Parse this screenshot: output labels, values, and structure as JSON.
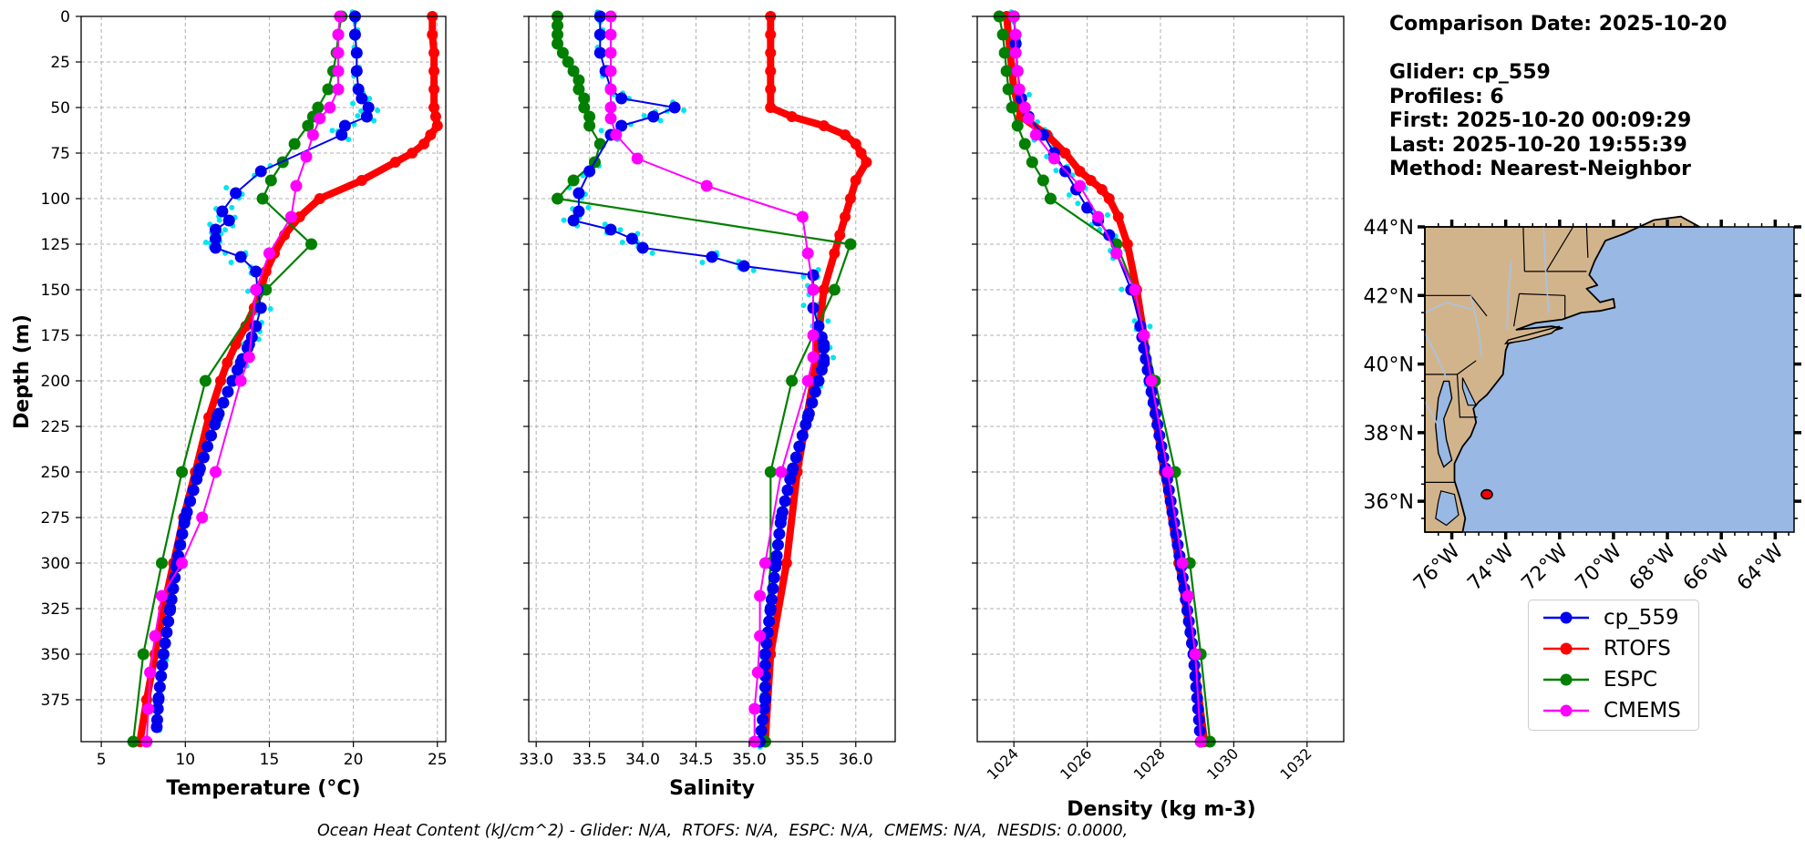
{
  "info": {
    "comparison_date": "Comparison Date: 2025-10-20",
    "glider": "Glider: cp_559",
    "profiles": "Profiles: 6",
    "first": "First: 2025-10-20 00:09:29",
    "last": "Last: 2025-10-20 19:55:39",
    "method": "Method: Nearest-Neighbor"
  },
  "footer": "Ocean Heat Content (kJ/cm^2) - Glider: N/A,  RTOFS: N/A,  ESPC: N/A,  CMEMS: N/A,  NESDIS: 0.0000,",
  "colors": {
    "glider": "#0000ee",
    "raw": "#00e5ee",
    "rtofs": "#ff0000",
    "espc": "#007f00",
    "cmems": "#ff00ff",
    "land": "#d2b48c",
    "ocean": "#99b8e3"
  },
  "legend": [
    {
      "label": "cp_559",
      "color": "#0000ee"
    },
    {
      "label": "RTOFS",
      "color": "#ff0000"
    },
    {
      "label": "ESPC",
      "color": "#007f00"
    },
    {
      "label": "CMEMS",
      "color": "#ff00ff"
    }
  ],
  "chart_data": [
    {
      "type": "line",
      "xlabel": "Temperature (°C)",
      "ylabel": "Depth (m)",
      "xlim": [
        3.8,
        25.5
      ],
      "ylim": [
        398,
        0
      ],
      "xticks": [
        5,
        10,
        15,
        20,
        25
      ],
      "yticks": [
        0,
        25,
        50,
        75,
        100,
        125,
        150,
        175,
        200,
        225,
        250,
        275,
        300,
        325,
        350,
        375
      ],
      "series": [
        {
          "name": "RTOFS",
          "depth": [
            0,
            10,
            20,
            30,
            40,
            50,
            55,
            60,
            65,
            70,
            75,
            80,
            90,
            100,
            110,
            120,
            130,
            140,
            150,
            160,
            170,
            180,
            190,
            200,
            220,
            250,
            275,
            300,
            325,
            350,
            375,
            398
          ],
          "values": [
            24.7,
            24.7,
            24.8,
            24.8,
            24.8,
            24.8,
            24.9,
            25.0,
            24.6,
            24.2,
            23.5,
            22.5,
            20.5,
            18.0,
            16.8,
            15.9,
            15.3,
            14.8,
            14.5,
            14.1,
            13.6,
            13.0,
            12.5,
            12.1,
            11.4,
            10.6,
            9.9,
            9.3,
            8.7,
            8.2,
            7.7,
            7.3
          ]
        },
        {
          "name": "ESPC",
          "depth": [
            0,
            10,
            20,
            30,
            40,
            50,
            55,
            60,
            70,
            80,
            90,
            100,
            125,
            150,
            200,
            250,
            300,
            350,
            398
          ],
          "values": [
            19.3,
            19.1,
            19.0,
            18.8,
            18.5,
            17.9,
            17.6,
            17.3,
            16.5,
            15.8,
            15.1,
            14.6,
            17.5,
            14.8,
            11.2,
            9.8,
            8.6,
            7.5,
            6.9
          ]
        },
        {
          "name": "cp_559",
          "depth": [
            0,
            10,
            20,
            30,
            40,
            45,
            50,
            55,
            60,
            65,
            85,
            97,
            107,
            112,
            117,
            122,
            127,
            132,
            140,
            150,
            160,
            170,
            180,
            190,
            200,
            220,
            250,
            275,
            300,
            325,
            350,
            375,
            390
          ],
          "values": [
            20.1,
            20.1,
            20.2,
            20.2,
            20.3,
            20.5,
            20.9,
            20.8,
            19.5,
            19.3,
            14.5,
            13.0,
            12.2,
            12.6,
            11.8,
            11.8,
            11.8,
            13.3,
            14.2,
            14.3,
            14.5,
            14.2,
            13.8,
            13.3,
            12.8,
            11.9,
            10.8,
            10.0,
            9.5,
            9.1,
            8.7,
            8.4,
            8.3
          ]
        },
        {
          "name": "CMEMS",
          "depth": [
            0,
            10,
            20,
            30,
            40,
            50,
            56,
            65,
            77,
            93,
            110,
            130,
            150,
            187,
            200,
            250,
            275,
            300,
            318,
            340,
            360,
            380,
            398
          ],
          "values": [
            19.2,
            19.1,
            19.1,
            19.1,
            19.1,
            18.6,
            18.0,
            17.6,
            17.2,
            16.6,
            16.3,
            15.0,
            14.2,
            13.8,
            13.3,
            11.8,
            11.0,
            9.8,
            8.6,
            8.2,
            7.9,
            7.8,
            7.7
          ]
        }
      ]
    },
    {
      "type": "line",
      "xlabel": "Salinity",
      "xlim": [
        32.93,
        36.37
      ],
      "ylim": [
        398,
        0
      ],
      "xticks": [
        33.0,
        33.5,
        34.0,
        34.5,
        35.0,
        35.5,
        36.0
      ],
      "series": [
        {
          "name": "RTOFS",
          "depth": [
            0,
            10,
            20,
            30,
            40,
            50,
            55,
            60,
            65,
            70,
            75,
            80,
            90,
            100,
            110,
            120,
            130,
            150,
            200,
            250,
            300,
            350,
            398
          ],
          "values": [
            35.2,
            35.2,
            35.2,
            35.2,
            35.2,
            35.2,
            35.4,
            35.7,
            35.9,
            36.0,
            36.05,
            36.1,
            36.0,
            35.95,
            35.9,
            35.85,
            35.8,
            35.7,
            35.6,
            35.45,
            35.35,
            35.2,
            35.15
          ]
        },
        {
          "name": "ESPC",
          "depth": [
            0,
            5,
            10,
            15,
            20,
            25,
            30,
            35,
            40,
            45,
            50,
            55,
            60,
            70,
            80,
            90,
            100,
            125,
            150,
            200,
            250,
            300,
            350,
            398
          ],
          "values": [
            33.2,
            33.2,
            33.2,
            33.2,
            33.25,
            33.3,
            33.35,
            33.4,
            33.4,
            33.45,
            33.45,
            33.5,
            33.5,
            33.6,
            33.55,
            33.35,
            33.2,
            35.95,
            35.8,
            35.4,
            35.2,
            35.2,
            35.15,
            35.15
          ]
        },
        {
          "name": "cp_559",
          "depth": [
            0,
            10,
            20,
            30,
            40,
            45,
            50,
            55,
            60,
            65,
            85,
            97,
            107,
            112,
            117,
            122,
            127,
            132,
            137,
            142,
            150,
            160,
            170,
            180,
            190,
            200,
            220,
            250,
            275,
            300,
            325,
            350,
            375,
            398
          ],
          "values": [
            33.6,
            33.6,
            33.6,
            33.65,
            33.7,
            33.8,
            34.3,
            34.1,
            33.8,
            33.7,
            33.5,
            33.4,
            33.4,
            33.35,
            33.7,
            33.9,
            34.0,
            34.65,
            34.95,
            35.6,
            35.6,
            35.6,
            35.65,
            35.7,
            35.7,
            35.65,
            35.55,
            35.4,
            35.3,
            35.25,
            35.2,
            35.15,
            35.15,
            35.1
          ]
        },
        {
          "name": "CMEMS",
          "depth": [
            0,
            10,
            20,
            30,
            40,
            50,
            56,
            65,
            78,
            93,
            110,
            130,
            150,
            175,
            187,
            200,
            250,
            300,
            318,
            340,
            360,
            380,
            398
          ],
          "values": [
            33.7,
            33.7,
            33.7,
            33.7,
            33.7,
            33.7,
            33.7,
            33.75,
            33.95,
            34.6,
            35.5,
            35.55,
            35.6,
            35.6,
            35.6,
            35.55,
            35.3,
            35.15,
            35.1,
            35.1,
            35.08,
            35.05,
            35.05
          ]
        }
      ]
    },
    {
      "type": "line",
      "xlabel": "Density (kg m-3)",
      "xlim": [
        1023.0,
        1033.0
      ],
      "ylim": [
        398,
        0
      ],
      "xticks": [
        1024,
        1026,
        1028,
        1030,
        1032
      ],
      "series": [
        {
          "name": "RTOFS",
          "depth": [
            0,
            20,
            40,
            55,
            65,
            75,
            85,
            90,
            95,
            100,
            110,
            125,
            150,
            175,
            200,
            250,
            300,
            350,
            398
          ],
          "values": [
            1023.8,
            1023.9,
            1024.0,
            1024.2,
            1024.9,
            1025.4,
            1025.8,
            1026.1,
            1026.4,
            1026.6,
            1026.85,
            1027.1,
            1027.35,
            1027.55,
            1027.7,
            1028.1,
            1028.5,
            1028.9,
            1029.2
          ]
        },
        {
          "name": "ESPC",
          "depth": [
            0,
            10,
            20,
            30,
            40,
            50,
            60,
            70,
            80,
            90,
            100,
            125,
            150,
            200,
            250,
            300,
            350,
            398
          ],
          "values": [
            1023.6,
            1023.7,
            1023.75,
            1023.8,
            1023.85,
            1023.95,
            1024.1,
            1024.3,
            1024.5,
            1024.8,
            1025.0,
            1026.8,
            1027.3,
            1027.85,
            1028.4,
            1028.8,
            1029.1,
            1029.35
          ]
        },
        {
          "name": "cp_559",
          "depth": [
            0,
            15,
            30,
            45,
            55,
            65,
            75,
            85,
            95,
            105,
            112,
            120,
            130,
            150,
            170,
            200,
            250,
            300,
            350,
            398
          ],
          "values": [
            1024.0,
            1024.05,
            1024.1,
            1024.2,
            1024.4,
            1024.8,
            1025.1,
            1025.4,
            1025.7,
            1026.0,
            1026.3,
            1026.6,
            1026.8,
            1027.2,
            1027.45,
            1027.7,
            1028.15,
            1028.55,
            1028.9,
            1029.1
          ]
        },
        {
          "name": "CMEMS",
          "depth": [
            0,
            10,
            20,
            30,
            40,
            50,
            56,
            65,
            78,
            93,
            110,
            130,
            150,
            175,
            200,
            250,
            300,
            318,
            350,
            398
          ],
          "values": [
            1024.0,
            1024.05,
            1024.05,
            1024.1,
            1024.15,
            1024.3,
            1024.4,
            1024.6,
            1025.1,
            1025.8,
            1026.3,
            1026.8,
            1027.3,
            1027.55,
            1027.75,
            1028.2,
            1028.6,
            1028.75,
            1028.95,
            1029.1
          ]
        }
      ]
    },
    {
      "type": "map",
      "lon_range": [
        -77.0,
        -63.3
      ],
      "lat_range": [
        35.1,
        44.0
      ],
      "lat_ticks": [
        "44°N",
        "42°N",
        "40°N",
        "38°N",
        "36°N"
      ],
      "lon_ticks": [
        "76°W",
        "74°W",
        "72°W",
        "70°W",
        "68°W",
        "66°W",
        "64°W"
      ],
      "marker": {
        "lon": -74.7,
        "lat": 36.2
      }
    }
  ]
}
